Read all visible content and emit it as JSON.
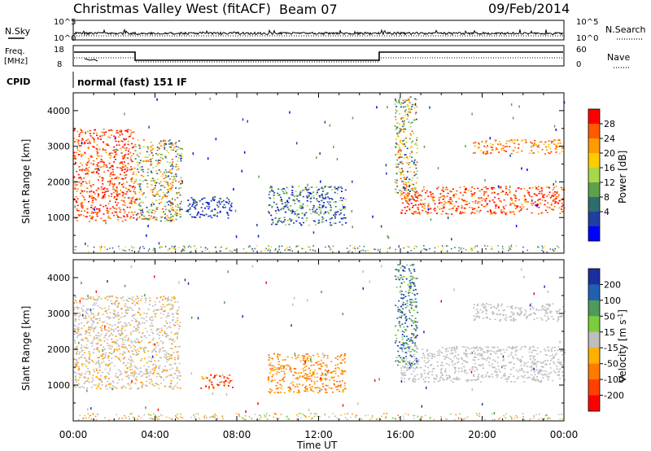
{
  "header": {
    "title": "Christmas Valley West (fitACF)",
    "beam": "Beam 07",
    "date": "09/Feb/2014"
  },
  "top_panels": {
    "nsky_label": "N.Sky",
    "nsearch_label": "N.Search",
    "noise_ticks": [
      "10^5",
      "10^0"
    ],
    "freq_label_1": "Freq.",
    "freq_label_2": "[MHz]",
    "freq_ticks": [
      "18",
      "8"
    ],
    "nave_label": "Nave",
    "nave_ticks": [
      "60",
      "0"
    ],
    "cpid_label": "CPID",
    "cpid_text": "normal (fast) 151 IF"
  },
  "chart_data": [
    {
      "type": "heatmap",
      "name": "power-panel",
      "ylabel": "Slant Range [km]",
      "ylim": [
        0,
        4500
      ],
      "yticks": [
        1000,
        2000,
        3000,
        4000
      ],
      "xlim": [
        0,
        24
      ],
      "colorbar": {
        "label": "Power [dB]",
        "ticks": [
          "28",
          "24",
          "20",
          "16",
          "12",
          "8",
          "4"
        ],
        "colors": [
          "#ff0000",
          "#ff5a00",
          "#ff9a00",
          "#ffcc00",
          "#a8d848",
          "#5fa04e",
          "#2c6e6e",
          "#1f3fa0",
          "#0000ff"
        ]
      },
      "regions": [
        {
          "t0": 0.0,
          "t1": 3.0,
          "r0": 900,
          "r1": 3500,
          "level": "high"
        },
        {
          "t0": 3.0,
          "t1": 5.3,
          "r0": 900,
          "r1": 3200,
          "level": "mixed"
        },
        {
          "t0": 5.5,
          "t1": 7.8,
          "r0": 1000,
          "r1": 1600,
          "level": "low"
        },
        {
          "t0": 9.5,
          "t1": 13.3,
          "r0": 800,
          "r1": 1900,
          "level": "low-mid"
        },
        {
          "t0": 16.0,
          "t1": 24.0,
          "r0": 1100,
          "r1": 1900,
          "level": "high"
        },
        {
          "t0": 19.5,
          "t1": 24.0,
          "r0": 2800,
          "r1": 3200,
          "level": "high-mid"
        },
        {
          "t0": 15.7,
          "t1": 16.8,
          "r0": 1500,
          "r1": 4400,
          "level": "mixed"
        }
      ]
    },
    {
      "type": "heatmap",
      "name": "velocity-panel",
      "ylabel": "Slant Range [km]",
      "ylim": [
        0,
        4500
      ],
      "yticks": [
        1000,
        2000,
        3000,
        4000
      ],
      "xlim": [
        0,
        24
      ],
      "xticks": [
        "00:00",
        "04:00",
        "08:00",
        "12:00",
        "16:00",
        "20:00",
        "00:00"
      ],
      "xlabel": "Time UT",
      "colorbar": {
        "label": "Velocity [m s^-1]",
        "ticks": [
          "200",
          "100",
          "50",
          "15",
          "-15",
          "-50",
          "-100",
          "-200"
        ],
        "colors": [
          "#1c2f9e",
          "#2060b0",
          "#4d9a5a",
          "#7ccd3c",
          "#bebebe",
          "#ffb000",
          "#ff7a00",
          "#ff4000",
          "#ff0000"
        ]
      },
      "regions": [
        {
          "t0": 0.0,
          "t1": 5.2,
          "r0": 900,
          "r1": 3500,
          "level": "grey-orange"
        },
        {
          "t0": 6.2,
          "t1": 7.8,
          "r0": 900,
          "r1": 1300,
          "level": "red"
        },
        {
          "t0": 9.5,
          "t1": 13.3,
          "r0": 800,
          "r1": 1900,
          "level": "orange"
        },
        {
          "t0": 16.0,
          "t1": 24.0,
          "r0": 1100,
          "r1": 2100,
          "level": "grey"
        },
        {
          "t0": 19.5,
          "t1": 24.0,
          "r0": 2800,
          "r1": 3300,
          "level": "grey"
        },
        {
          "t0": 15.7,
          "t1": 16.8,
          "r0": 1500,
          "r1": 4400,
          "level": "blue-green"
        }
      ]
    }
  ]
}
